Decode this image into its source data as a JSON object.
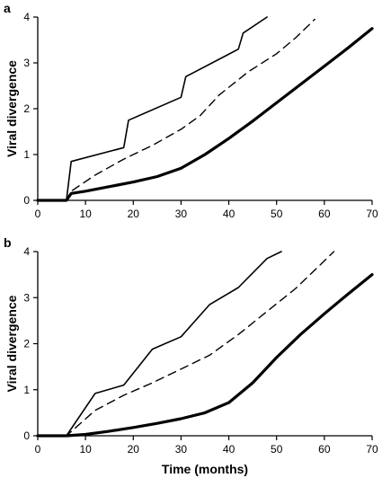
{
  "chart_data": [
    {
      "panel_label": "a",
      "type": "line",
      "xlabel": "",
      "ylabel": "Viral divergence",
      "xlim": [
        0,
        70
      ],
      "ylim": [
        0,
        4
      ],
      "xticks": [
        "0",
        "10",
        "20",
        "30",
        "40",
        "50",
        "60",
        "70"
      ],
      "yticks": [
        "0",
        "1",
        "2",
        "3",
        "4"
      ],
      "grid": false,
      "series": [
        {
          "style": "thin-solid",
          "color": "#000000",
          "x": [
            0,
            6,
            7,
            18,
            19,
            30,
            31,
            42,
            43,
            48
          ],
          "y": [
            0,
            0,
            0.85,
            1.15,
            1.75,
            2.25,
            2.7,
            3.3,
            3.65,
            4.0
          ]
        },
        {
          "style": "dashed",
          "color": "#000000",
          "x": [
            0,
            6,
            7,
            12,
            18,
            24,
            30,
            34,
            38,
            44,
            50,
            54,
            58
          ],
          "y": [
            0,
            0,
            0.2,
            0.55,
            0.9,
            1.2,
            1.55,
            1.85,
            2.3,
            2.8,
            3.2,
            3.55,
            3.95
          ]
        },
        {
          "style": "thick-solid",
          "color": "#000000",
          "x": [
            0,
            6,
            7,
            10,
            15,
            20,
            25,
            30,
            35,
            40,
            45,
            50,
            55,
            60,
            65,
            70
          ],
          "y": [
            0,
            0,
            0.15,
            0.2,
            0.3,
            0.4,
            0.52,
            0.7,
            1.0,
            1.35,
            1.73,
            2.13,
            2.53,
            2.93,
            3.33,
            3.75
          ]
        }
      ]
    },
    {
      "panel_label": "b",
      "type": "line",
      "xlabel": "Time (months)",
      "ylabel": "Viral divergence",
      "xlim": [
        0,
        70
      ],
      "ylim": [
        0,
        4
      ],
      "xticks": [
        "0",
        "10",
        "20",
        "30",
        "40",
        "50",
        "60",
        "70"
      ],
      "yticks": [
        "0",
        "1",
        "2",
        "3",
        "4"
      ],
      "grid": false,
      "series": [
        {
          "style": "thin-solid",
          "color": "#000000",
          "x": [
            0,
            6,
            12,
            18,
            24,
            30,
            36,
            42,
            48,
            51
          ],
          "y": [
            0,
            0,
            0.92,
            1.1,
            1.88,
            2.15,
            2.85,
            3.22,
            3.85,
            4.0
          ]
        },
        {
          "style": "dashed",
          "color": "#000000",
          "x": [
            0,
            6,
            12,
            18,
            24,
            30,
            36,
            42,
            48,
            54,
            60,
            62
          ],
          "y": [
            0,
            0,
            0.55,
            0.88,
            1.15,
            1.45,
            1.75,
            2.2,
            2.7,
            3.2,
            3.8,
            4.0
          ]
        },
        {
          "style": "thick-solid",
          "color": "#000000",
          "x": [
            0,
            6,
            10,
            15,
            20,
            25,
            30,
            35,
            40,
            45,
            50,
            55,
            60,
            65,
            70
          ],
          "y": [
            0,
            0,
            0.03,
            0.1,
            0.18,
            0.27,
            0.37,
            0.5,
            0.72,
            1.15,
            1.7,
            2.2,
            2.65,
            3.08,
            3.5
          ]
        }
      ]
    }
  ]
}
